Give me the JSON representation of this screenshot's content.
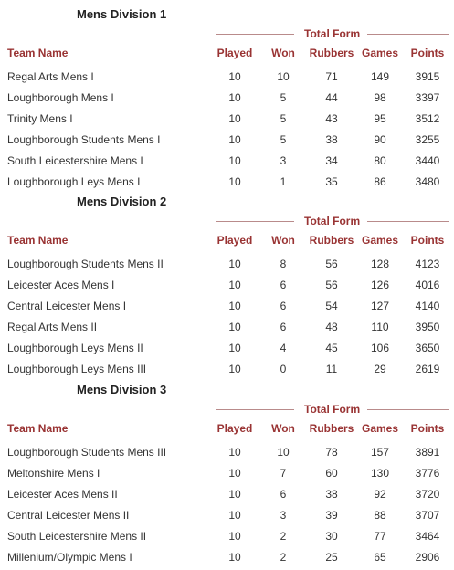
{
  "headers": {
    "total_form": "Total Form",
    "team": "Team Name",
    "played": "Played",
    "won": "Won",
    "rubbers": "Rubbers",
    "games": "Games",
    "points": "Points"
  },
  "divisions": [
    {
      "title": "Mens Division 1",
      "rows": [
        {
          "team": "Regal Arts Mens I",
          "played": "10",
          "won": "10",
          "rubbers": "71",
          "games": "149",
          "points": "3915"
        },
        {
          "team": "Loughborough Mens I",
          "played": "10",
          "won": "5",
          "rubbers": "44",
          "games": "98",
          "points": "3397"
        },
        {
          "team": "Trinity Mens I",
          "played": "10",
          "won": "5",
          "rubbers": "43",
          "games": "95",
          "points": "3512"
        },
        {
          "team": "Loughborough Students Mens I",
          "played": "10",
          "won": "5",
          "rubbers": "38",
          "games": "90",
          "points": "3255"
        },
        {
          "team": "South Leicestershire Mens I",
          "played": "10",
          "won": "3",
          "rubbers": "34",
          "games": "80",
          "points": "3440"
        },
        {
          "team": "Loughborough Leys Mens I",
          "played": "10",
          "won": "1",
          "rubbers": "35",
          "games": "86",
          "points": "3480"
        }
      ]
    },
    {
      "title": "Mens Division 2",
      "rows": [
        {
          "team": "Loughborough Students Mens II",
          "played": "10",
          "won": "8",
          "rubbers": "56",
          "games": "128",
          "points": "4123"
        },
        {
          "team": "Leicester Aces Mens I",
          "played": "10",
          "won": "6",
          "rubbers": "56",
          "games": "126",
          "points": "4016"
        },
        {
          "team": "Central Leicester Mens I",
          "played": "10",
          "won": "6",
          "rubbers": "54",
          "games": "127",
          "points": "4140"
        },
        {
          "team": "Regal Arts Mens II",
          "played": "10",
          "won": "6",
          "rubbers": "48",
          "games": "110",
          "points": "3950"
        },
        {
          "team": "Loughborough Leys Mens II",
          "played": "10",
          "won": "4",
          "rubbers": "45",
          "games": "106",
          "points": "3650"
        },
        {
          "team": "Loughborough Leys Mens III",
          "played": "10",
          "won": "0",
          "rubbers": "11",
          "games": "29",
          "points": "2619"
        }
      ]
    },
    {
      "title": "Mens Division 3",
      "rows": [
        {
          "team": "Loughborough Students Mens III",
          "played": "10",
          "won": "10",
          "rubbers": "78",
          "games": "157",
          "points": "3891"
        },
        {
          "team": "Meltonshire Mens I",
          "played": "10",
          "won": "7",
          "rubbers": "60",
          "games": "130",
          "points": "3776"
        },
        {
          "team": "Leicester Aces Mens II",
          "played": "10",
          "won": "6",
          "rubbers": "38",
          "games": "92",
          "points": "3720"
        },
        {
          "team": "Central Leicester Mens II",
          "played": "10",
          "won": "3",
          "rubbers": "39",
          "games": "88",
          "points": "3707"
        },
        {
          "team": "South Leicestershire Mens II",
          "played": "10",
          "won": "2",
          "rubbers": "30",
          "games": "77",
          "points": "3464"
        },
        {
          "team": "Millenium/Olympic Mens I",
          "played": "10",
          "won": "2",
          "rubbers": "25",
          "games": "65",
          "points": "2906"
        }
      ]
    }
  ]
}
